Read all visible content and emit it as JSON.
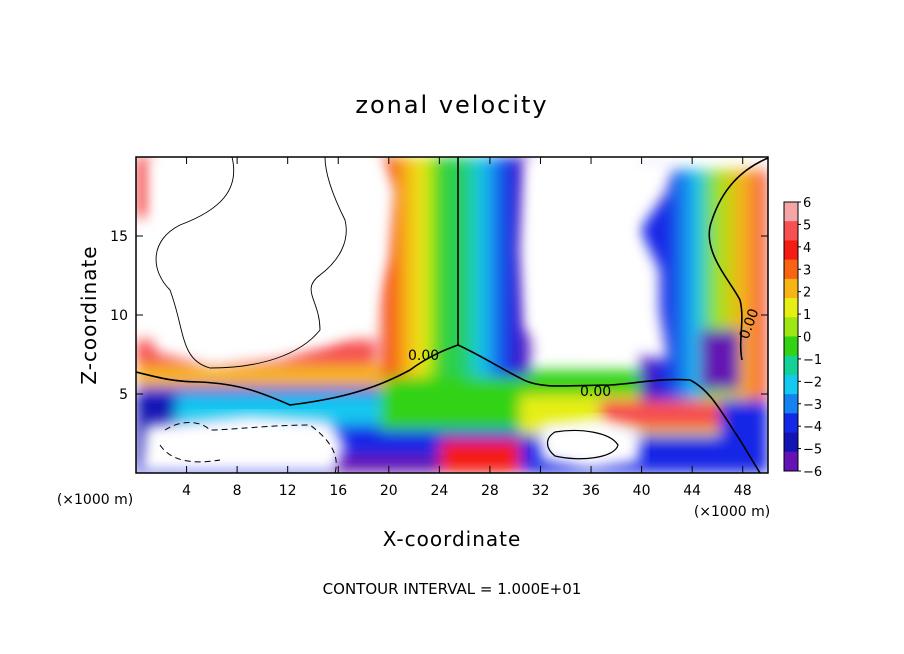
{
  "chart_data": {
    "type": "heatmap",
    "title": "zonal velocity",
    "xlabel": "X-coordinate",
    "ylabel": "Z-coordinate",
    "x_unit": "(×1000 m)",
    "y_unit": "(×1000 m)",
    "xlim": [
      0,
      50
    ],
    "ylim": [
      0,
      20
    ],
    "x_ticks": [
      4,
      8,
      12,
      16,
      20,
      24,
      28,
      32,
      36,
      40,
      44,
      48
    ],
    "y_ticks": [
      5,
      10,
      15
    ],
    "contour_interval_text": "CONTOUR INTERVAL = 1.000E+01",
    "contour_labels": [
      "0.00",
      "0.00",
      "0.00"
    ],
    "colorbar": {
      "levels": [
        6,
        5,
        4,
        3,
        2,
        1,
        0,
        -1,
        -2,
        -3,
        -4,
        -5,
        -6
      ],
      "labels": [
        "6",
        "5",
        "4",
        "3",
        "2",
        "1",
        "0",
        "−1",
        "−2",
        "−3",
        "−4",
        "−5",
        "−6"
      ],
      "colors": [
        "#f4a6a6",
        "#f65050",
        "#f41c14",
        "#f86414",
        "#f8b414",
        "#e6ee14",
        "#9ee614",
        "#32d214",
        "#14d296",
        "#14c8f0",
        "#1482f0",
        "#1428e6",
        "#1414b4",
        "#6414b4"
      ]
    }
  }
}
